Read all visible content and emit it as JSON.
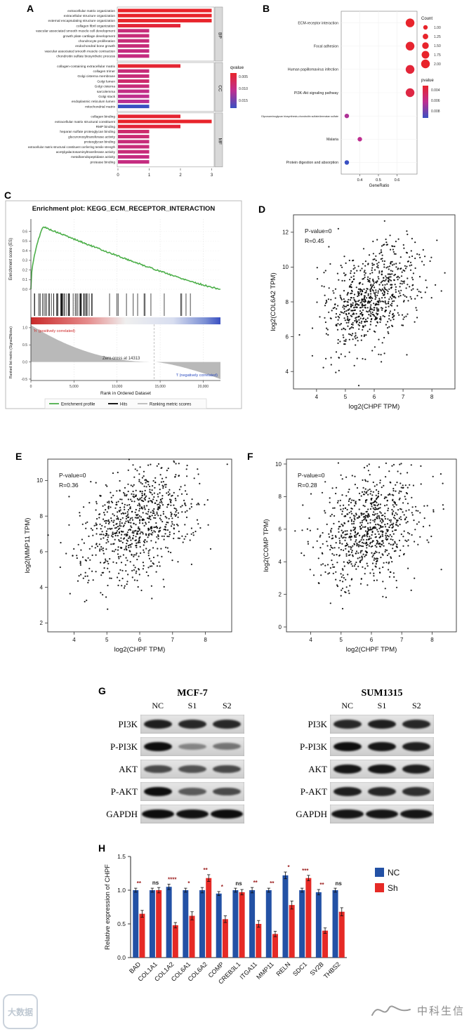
{
  "figure": {
    "panel_labels": {
      "A": "A",
      "B": "B",
      "C": "C",
      "D": "D",
      "E": "E",
      "F": "F",
      "G": "G",
      "H": "H"
    }
  },
  "watermarks": {
    "left_logo_text": "大数据",
    "right_text": "中科生信"
  },
  "western": {
    "groups": [
      {
        "cell_line": "MCF-7",
        "lanes": [
          "NC",
          "S1",
          "S2"
        ],
        "proteins": [
          "PI3K",
          "P-PI3K",
          "AKT",
          "P-AKT",
          "GAPDH"
        ],
        "band_intensity": {
          "PI3K": [
            0.85,
            0.8,
            0.8
          ],
          "P-PI3K": [
            0.95,
            0.25,
            0.35
          ],
          "AKT": [
            0.6,
            0.55,
            0.6
          ],
          "P-AKT": [
            0.95,
            0.5,
            0.6
          ],
          "GAPDH": [
            0.95,
            0.92,
            0.95
          ]
        }
      },
      {
        "cell_line": "SUM1315",
        "lanes": [
          "NC",
          "S1",
          "S2"
        ],
        "proteins": [
          "PI3K",
          "P-PI3K",
          "AKT",
          "P-AKT",
          "GAPDH"
        ],
        "band_intensity": {
          "PI3K": [
            0.8,
            0.85,
            0.8
          ],
          "P-PI3K": [
            0.95,
            0.9,
            0.85
          ],
          "AKT": [
            0.9,
            0.9,
            0.85
          ],
          "P-AKT": [
            0.85,
            0.8,
            0.75
          ],
          "GAPDH": [
            0.9,
            0.9,
            0.9
          ]
        }
      }
    ]
  },
  "chart_data": [
    {
      "id": "A",
      "type": "bar",
      "orientation": "horizontal",
      "xlim": [
        0,
        3
      ],
      "xticks": [
        0,
        1,
        2,
        3
      ],
      "legend": {
        "title": "qvalue",
        "ticks": [
          0.005,
          0.01,
          0.015
        ]
      },
      "facets": [
        {
          "name": "BP",
          "terms": [
            {
              "label": "extracellular matrix organization",
              "count": 3,
              "qvalue": 0.003
            },
            {
              "label": "extracellular structure organization",
              "count": 3,
              "qvalue": 0.003
            },
            {
              "label": "external encapsulating structure organization",
              "count": 3,
              "qvalue": 0.003
            },
            {
              "label": "collagen fibril organization",
              "count": 2,
              "qvalue": 0.005
            },
            {
              "label": "vascular associated smooth muscle cell development",
              "count": 1,
              "qvalue": 0.015
            },
            {
              "label": "growth plate cartilage development",
              "count": 1,
              "qvalue": 0.015
            },
            {
              "label": "chondrocyte proliferation",
              "count": 1,
              "qvalue": 0.015
            },
            {
              "label": "endochondral bone growth",
              "count": 1,
              "qvalue": 0.015
            },
            {
              "label": "vascular associated smooth muscle contraction",
              "count": 1,
              "qvalue": 0.016
            },
            {
              "label": "chondroitin sulfate biosynthetic process",
              "count": 1,
              "qvalue": 0.016
            }
          ]
        },
        {
          "name": "CC",
          "terms": [
            {
              "label": "collagen-containing extracellular matrix",
              "count": 2,
              "qvalue": 0.004
            },
            {
              "label": "collagen trimer",
              "count": 1,
              "qvalue": 0.015
            },
            {
              "label": "Golgi cisterna membrane",
              "count": 1,
              "qvalue": 0.015
            },
            {
              "label": "Golgi lumen",
              "count": 1,
              "qvalue": 0.013
            },
            {
              "label": "Golgi cisterna",
              "count": 1,
              "qvalue": 0.015
            },
            {
              "label": "sarcolemma",
              "count": 1,
              "qvalue": 0.017
            },
            {
              "label": "Golgi stack",
              "count": 1,
              "qvalue": 0.018
            },
            {
              "label": "endoplasmic reticulum lumen",
              "count": 1,
              "qvalue": 0.019
            },
            {
              "label": "mitochondrial matrix",
              "count": 1,
              "qvalue": 0.034
            }
          ]
        },
        {
          "name": "MF",
          "terms": [
            {
              "label": "collagen binding",
              "count": 2,
              "qvalue": 0.004
            },
            {
              "label": "extracellular matrix structural constituent",
              "count": 3,
              "qvalue": 0.003
            },
            {
              "label": "RMP binding",
              "count": 2,
              "qvalue": 0.005
            },
            {
              "label": "heparan sulfate proteoglycan binding",
              "count": 1,
              "qvalue": 0.013
            },
            {
              "label": "glucuronosyltransferase activity",
              "count": 1,
              "qvalue": 0.014
            },
            {
              "label": "proteoglycan binding",
              "count": 1,
              "qvalue": 0.015
            },
            {
              "label": "extracellular matrix structural constituent conferring tensile strength",
              "count": 1,
              "qvalue": 0.015
            },
            {
              "label": "acetylgalactosaminyltransferase activity",
              "count": 1,
              "qvalue": 0.015
            },
            {
              "label": "metalloendopeptidase activity",
              "count": 1,
              "qvalue": 0.016
            },
            {
              "label": "protease binding",
              "count": 1,
              "qvalue": 0.016
            }
          ]
        }
      ]
    },
    {
      "id": "B",
      "type": "scatter",
      "subtype": "dotplot",
      "xlabel": "GeneRatio",
      "xlim": [
        0.3,
        0.7
      ],
      "xticks": [
        0.4,
        0.5,
        0.6
      ],
      "legend_count": {
        "title": "Count",
        "values": [
          1.0,
          1.25,
          1.5,
          1.75,
          2.0
        ]
      },
      "legend_color": {
        "title": "pvalue",
        "ticks": [
          0.004,
          0.006,
          0.008
        ]
      },
      "pathways": [
        {
          "label": "ECM-receptor interaction",
          "gene_ratio": 0.67,
          "count": 2,
          "pvalue": 0.001
        },
        {
          "label": "Focal adhesion",
          "gene_ratio": 0.67,
          "count": 2,
          "pvalue": 0.0012
        },
        {
          "label": "Human papillomavirus infection",
          "gene_ratio": 0.67,
          "count": 2,
          "pvalue": 0.0015
        },
        {
          "label": "PI3K-Akt signaling pathway",
          "gene_ratio": 0.67,
          "count": 2,
          "pvalue": 0.002
        },
        {
          "label": "Glycosaminoglycan biosynthesis-chondroitin sulfate/dermatan sulfate",
          "gene_ratio": 0.33,
          "count": 1,
          "pvalue": 0.0055
        },
        {
          "label": "Malaria",
          "gene_ratio": 0.4,
          "count": 1,
          "pvalue": 0.005
        },
        {
          "label": "Protein digestion and absorption",
          "gene_ratio": 0.33,
          "count": 1,
          "pvalue": 0.009
        }
      ]
    },
    {
      "id": "C",
      "type": "line",
      "subtype": "gsea",
      "title": "Enrichment plot: KEGG_ECM_RECEPTOR_INTERACTION",
      "es_ylabel": "Enrichment score (ES)",
      "metric_ylabel": "Ranked list metric (Signal2Noise)",
      "xlabel": "Rank in Ordered Dataset",
      "es_peak": 0.65,
      "es_peak_rank": 1400,
      "n_ranks": 22000,
      "zero_cross": 14313,
      "zero_cross_label": "Zero cross at 14313",
      "pos_label": "'h' (positively correlated)",
      "neg_label": "'l' (negatively correlated)",
      "es_ticks": [
        0.0,
        0.1,
        0.2,
        0.3,
        0.4,
        0.5,
        0.6
      ],
      "metric_ticks": [
        1.0,
        0.5,
        0.0,
        -0.5
      ],
      "xticks": [
        0,
        5000,
        10000,
        15000,
        20000
      ],
      "legend": [
        "Enrichment profile",
        "Hits",
        "Ranking metric scores"
      ],
      "colors": {
        "profile": "#4daf4a",
        "hits": "#000000",
        "metric": "#b9b9b9"
      }
    },
    {
      "id": "D",
      "type": "scatter",
      "annotation": {
        "pvalue": "P-value=0",
        "r": "R=0.45"
      },
      "xlabel": "log2(CHPF TPM)",
      "ylabel": "log2(COL6A2 TPM)",
      "xticks": [
        4,
        5,
        6,
        7,
        8
      ],
      "yticks": [
        4,
        6,
        8,
        10,
        12
      ],
      "xlim": [
        3.2,
        8.8
      ],
      "ylim": [
        3.0,
        13.0
      ],
      "n_points": 780,
      "r_value": 0.45,
      "x_mean": 5.9,
      "x_sd": 0.82,
      "y_mean": 8.3,
      "y_sd": 1.5,
      "seed": 11
    },
    {
      "id": "E",
      "type": "scatter",
      "annotation": {
        "pvalue": "P-value=0",
        "r": "R=0.36"
      },
      "xlabel": "log2(CHPF TPM)",
      "ylabel": "log2(MMP11 TPM)",
      "xticks": [
        4,
        5,
        6,
        7,
        8
      ],
      "yticks": [
        2,
        4,
        6,
        8,
        10
      ],
      "xlim": [
        3.2,
        8.8
      ],
      "ylim": [
        1.5,
        11.2
      ],
      "n_points": 820,
      "r_value": 0.36,
      "x_mean": 5.85,
      "x_sd": 0.85,
      "y_mean": 7.5,
      "y_sd": 1.65,
      "seed": 23
    },
    {
      "id": "F",
      "type": "scatter",
      "annotation": {
        "pvalue": "P-value=0",
        "r": "R=0.28"
      },
      "xlabel": "log2(CHPF TPM)",
      "ylabel": "log2(COMP TPM)",
      "xticks": [
        4,
        5,
        6,
        7,
        8
      ],
      "yticks": [
        0,
        2,
        4,
        6,
        8,
        10
      ],
      "xlim": [
        3.2,
        8.8
      ],
      "ylim": [
        -0.3,
        10.3
      ],
      "n_points": 820,
      "r_value": 0.28,
      "x_mean": 5.9,
      "x_sd": 0.85,
      "y_mean": 6.1,
      "y_sd": 1.75,
      "seed": 37
    },
    {
      "id": "H",
      "type": "bar",
      "ylabel": "Relative expression of CHPF",
      "yticks": [
        0.0,
        0.5,
        1.0,
        1.5
      ],
      "ylim": [
        0,
        1.5
      ],
      "categories": [
        "BAD",
        "COL1A1",
        "COL1A2",
        "COL6A1",
        "COL6A2",
        "COMP",
        "CREB3L1",
        "ITGA11",
        "MMP11",
        "RELN",
        "SDC1",
        "SV2B",
        "THBS2"
      ],
      "series": [
        {
          "name": "NC",
          "color": "#2351A5",
          "values": [
            1.0,
            1.0,
            1.05,
            1.0,
            1.0,
            0.95,
            1.0,
            1.0,
            1.0,
            1.22,
            1.0,
            0.97,
            1.0
          ],
          "errors": [
            0.03,
            0.03,
            0.04,
            0.03,
            0.04,
            0.03,
            0.03,
            0.04,
            0.03,
            0.05,
            0.03,
            0.04,
            0.03
          ]
        },
        {
          "name": "Sh",
          "color": "#E62A26",
          "values": [
            0.65,
            1.0,
            0.48,
            0.62,
            1.18,
            0.57,
            0.97,
            0.5,
            0.35,
            0.78,
            1.18,
            0.4,
            0.68
          ],
          "errors": [
            0.05,
            0.04,
            0.04,
            0.06,
            0.05,
            0.05,
            0.04,
            0.05,
            0.04,
            0.06,
            0.04,
            0.04,
            0.06
          ]
        }
      ],
      "significance": [
        "**",
        "ns",
        "****",
        "*",
        "**",
        "*",
        "ns",
        "**",
        "**",
        "*",
        "***",
        "**",
        "ns"
      ],
      "sig_color": "#9A1B1B",
      "ns_color": "#1a1a1a"
    }
  ]
}
